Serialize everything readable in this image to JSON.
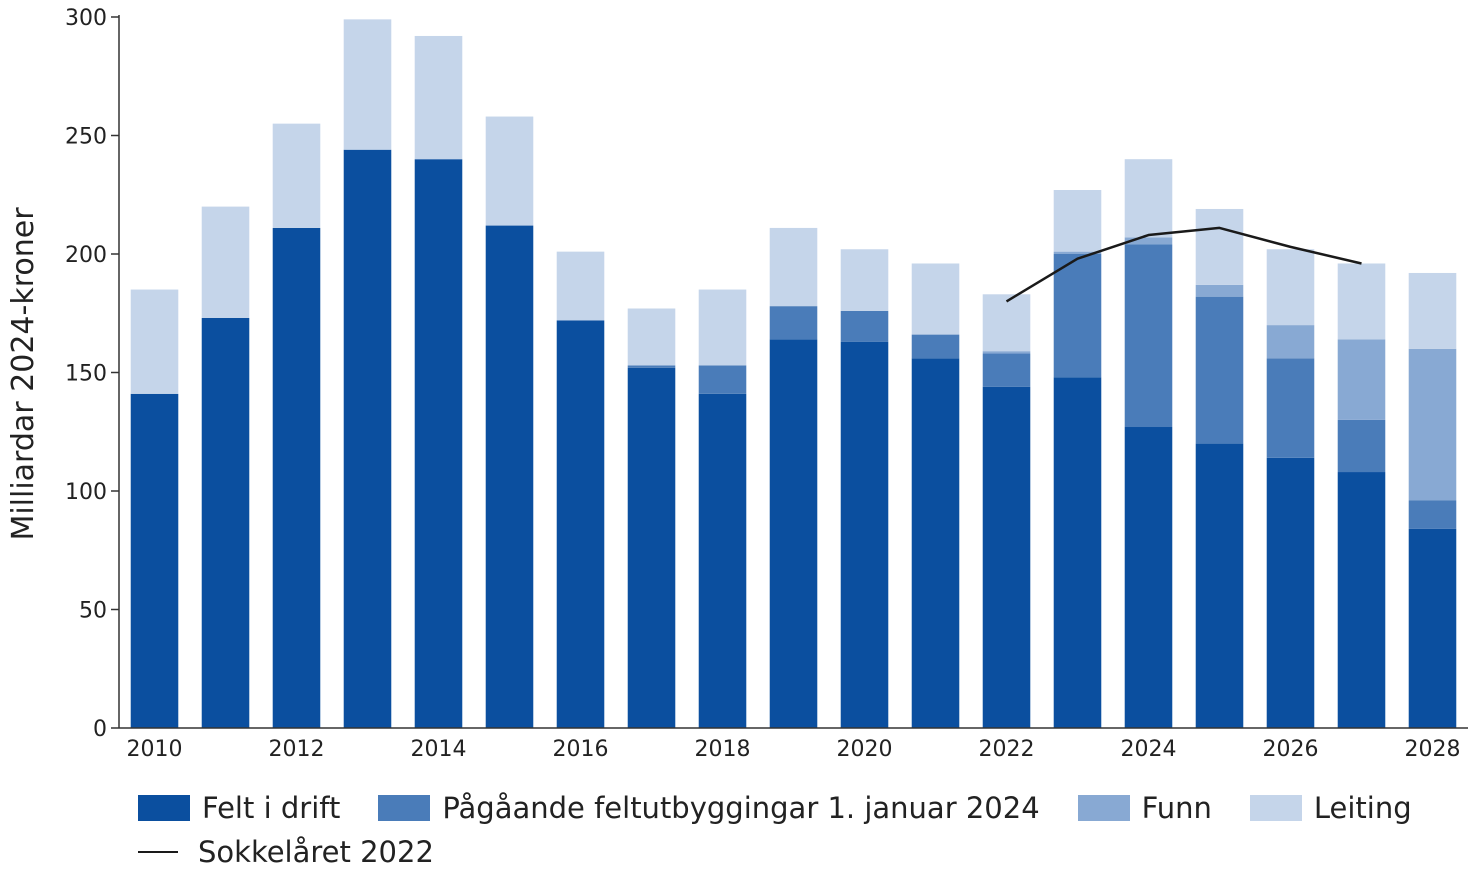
{
  "chart_data": {
    "type": "bar",
    "stacked": true,
    "title": "",
    "ylabel": "Milliardar 2024-kroner",
    "xlabel": "",
    "ylim": [
      0,
      300
    ],
    "yticks": [
      0,
      50,
      100,
      150,
      200,
      250,
      300
    ],
    "categories": [
      2010,
      2011,
      2012,
      2013,
      2014,
      2015,
      2016,
      2017,
      2018,
      2019,
      2020,
      2021,
      2022,
      2023,
      2024,
      2025,
      2026,
      2027,
      2028
    ],
    "xticks": [
      "2010",
      "2012",
      "2014",
      "2016",
      "2018",
      "2020",
      "2022",
      "2024",
      "2026",
      "2028"
    ],
    "grid": false,
    "legend_position": "bottom",
    "series": [
      {
        "name": "Felt i drift",
        "color": "#0b4f9f",
        "values": [
          141,
          173,
          211,
          244,
          240,
          212,
          172,
          152,
          141,
          164,
          163,
          156,
          144,
          148,
          127,
          120,
          114,
          108,
          84
        ]
      },
      {
        "name": "Pågåande feltutbyggingar 1. januar 2024",
        "color": "#4a7cb9",
        "values": [
          0,
          0,
          0,
          0,
          0,
          0,
          0,
          1,
          12,
          14,
          13,
          10,
          14,
          52,
          77,
          62,
          42,
          22,
          12
        ]
      },
      {
        "name": "Funn",
        "color": "#88a9d3",
        "values": [
          0,
          0,
          0,
          0,
          0,
          0,
          0,
          0,
          0,
          0,
          0,
          0,
          1,
          1,
          3,
          5,
          14,
          34,
          64
        ]
      },
      {
        "name": "Leiting",
        "color": "#c5d5ea",
        "values": [
          44,
          47,
          44,
          55,
          52,
          46,
          29,
          24,
          32,
          33,
          26,
          30,
          24,
          26,
          33,
          32,
          32,
          32,
          32
        ]
      }
    ],
    "line_series": {
      "name": "Sokkelåret 2022",
      "color": "#1a1a1a",
      "x": [
        2022,
        2023,
        2024,
        2025,
        2026,
        2027
      ],
      "values": [
        180,
        198,
        208,
        211,
        203,
        196
      ]
    }
  }
}
